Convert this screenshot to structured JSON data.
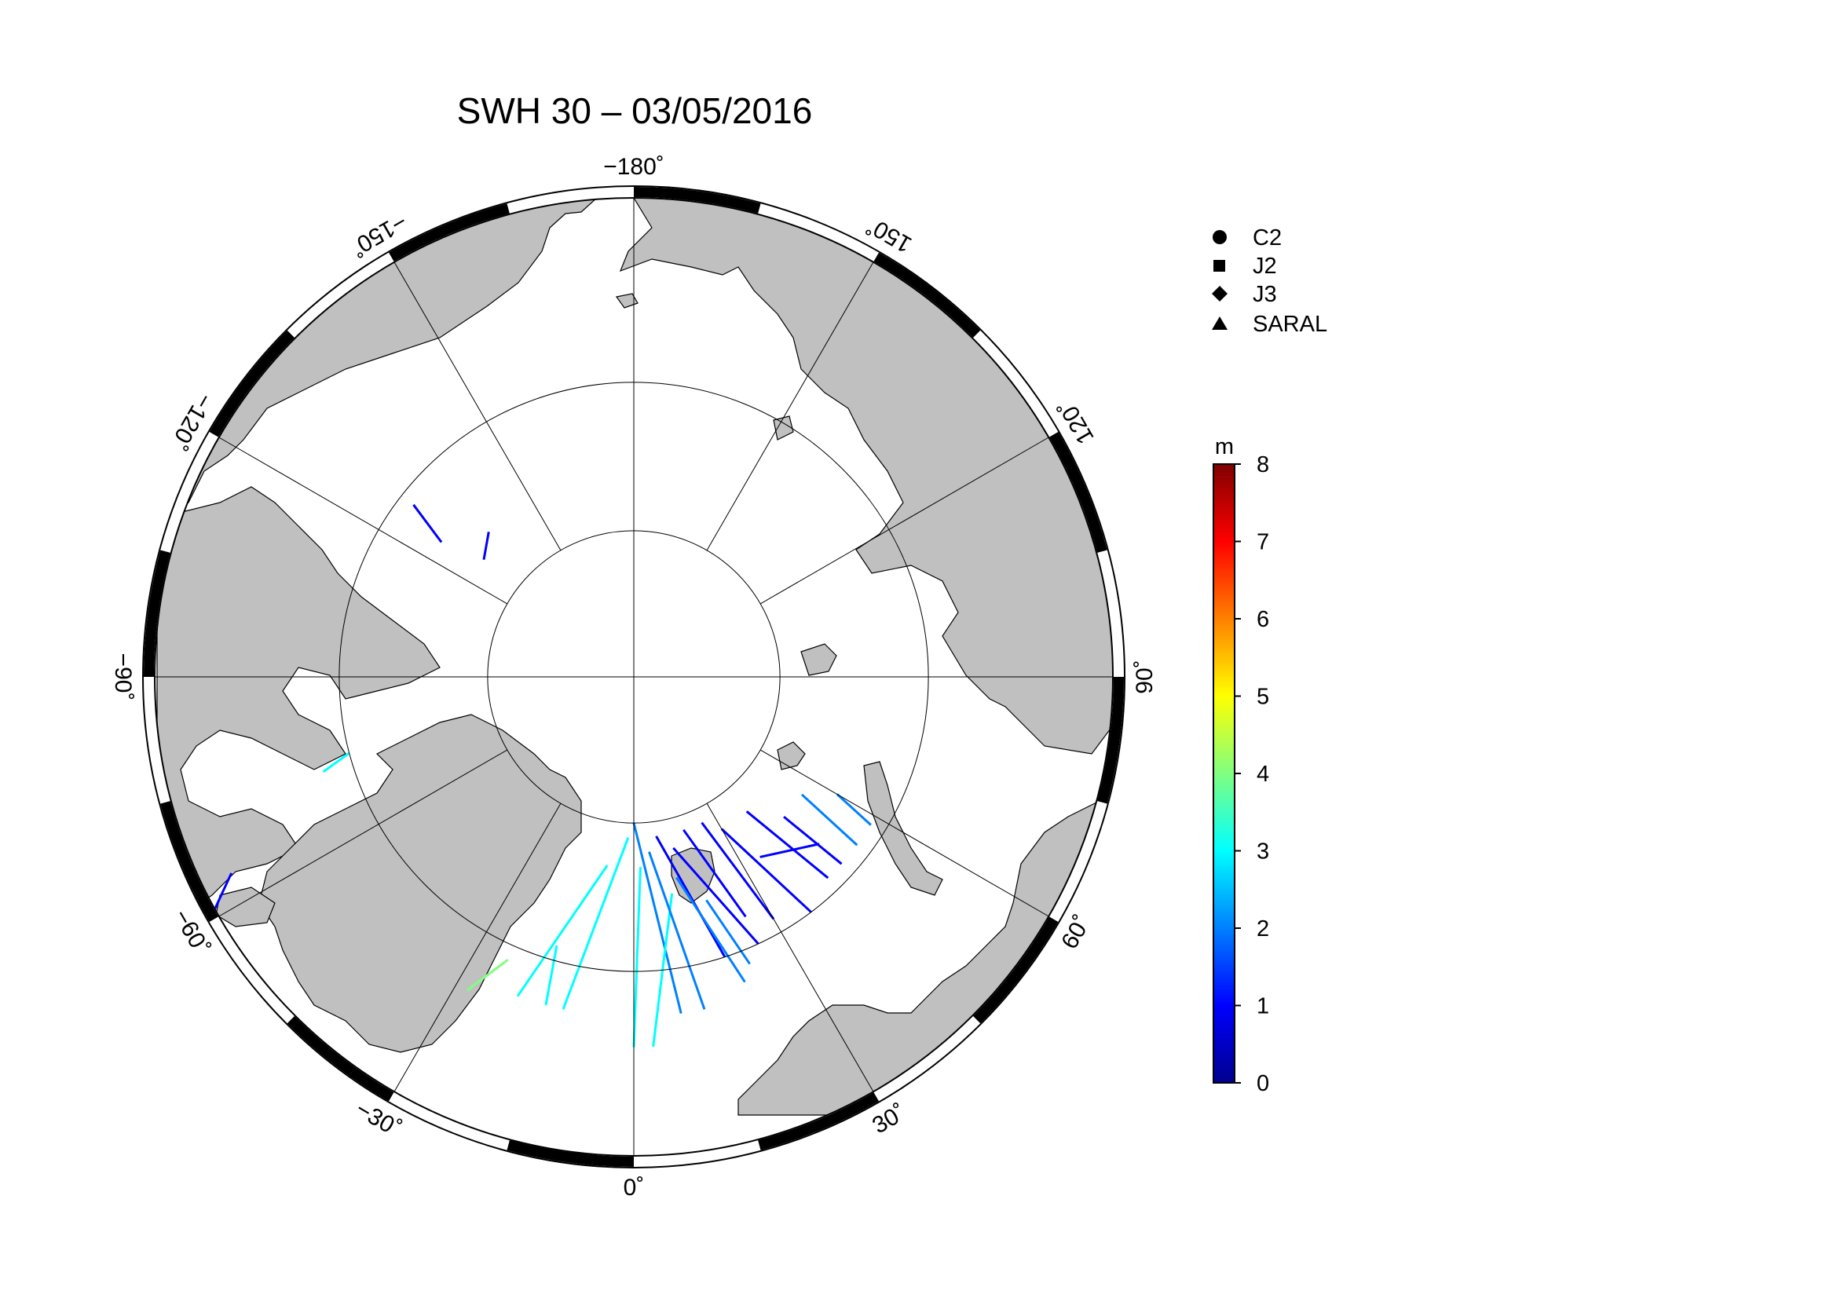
{
  "title": "SWH 30 – 03/05/2016",
  "colors": {
    "land": "#c0c0c0",
    "ocean": "#ffffff",
    "coast": "#000000",
    "graticule": "#000000",
    "frame": "#000000"
  },
  "map": {
    "projection": "polar-stereographic-north",
    "rotation_note": "0° at bottom, 90° at right",
    "meridian_labels": [
      {
        "lon": -180,
        "text": "−180˚"
      },
      {
        "lon": 150,
        "text": "150˚"
      },
      {
        "lon": 120,
        "text": "120˚"
      },
      {
        "lon": 90,
        "text": "90˚"
      },
      {
        "lon": 60,
        "text": "60˚"
      },
      {
        "lon": 30,
        "text": "30˚"
      },
      {
        "lon": 0,
        "text": "0˚"
      },
      {
        "lon": -30,
        "text": "−30˚"
      },
      {
        "lon": -60,
        "text": "−60˚"
      },
      {
        "lon": -90,
        "text": "−90˚"
      },
      {
        "lon": -120,
        "text": "−120˚"
      },
      {
        "lon": -150,
        "text": "−150˚"
      }
    ]
  },
  "legend": {
    "items": [
      {
        "symbol": "circle",
        "label": "C2"
      },
      {
        "symbol": "square",
        "label": "J2"
      },
      {
        "symbol": "diamond",
        "label": "J3"
      },
      {
        "symbol": "triangle",
        "label": "SARAL"
      }
    ]
  },
  "colorbar": {
    "unit": "m",
    "min": 0,
    "max": 8,
    "ticks": [
      "0",
      "1",
      "2",
      "3",
      "4",
      "5",
      "6",
      "7",
      "8"
    ],
    "colormap": [
      "#00008f",
      "#0000ff",
      "#0080ff",
      "#00ffff",
      "#80ff80",
      "#ffff00",
      "#ff8000",
      "#ff0000",
      "#800000"
    ]
  },
  "tracks": [
    {
      "swh": 1.3,
      "lon1": 18,
      "lat1": 79,
      "lon2": 25,
      "lat2": 72
    },
    {
      "swh": 1.2,
      "lon1": 25,
      "lat1": 79,
      "lon2": 30,
      "lat2": 71
    },
    {
      "swh": 1.0,
      "lon1": 13,
      "lat1": 78,
      "lon2": 25,
      "lat2": 70
    },
    {
      "swh": 1.4,
      "lon1": 8,
      "lat1": 79,
      "lon2": 18,
      "lat2": 70
    },
    {
      "swh": 1.1,
      "lon1": 30,
      "lat1": 78,
      "lon2": 37,
      "lat2": 70
    },
    {
      "swh": 1.2,
      "lon1": 40,
      "lat1": 78,
      "lon2": 44,
      "lat2": 71
    },
    {
      "swh": 1.3,
      "lon1": 47,
      "lat1": 76,
      "lon2": 48,
      "lat2": 71
    },
    {
      "swh": 1.5,
      "lon1": 55,
      "lat1": 76,
      "lon2": 53,
      "lat2": 71
    },
    {
      "swh": 1.2,
      "lon1": 35,
      "lat1": 75,
      "lon2": 48,
      "lat2": 73
    },
    {
      "swh": 1.6,
      "lon1": 60,
      "lat1": 74,
      "lon2": 58,
      "lat2": 71
    },
    {
      "swh": 1.8,
      "lon1": 0,
      "lat1": 80,
      "lon2": 8,
      "lat2": 67
    },
    {
      "swh": 2.6,
      "lon1": -2,
      "lat1": 79,
      "lon2": -12,
      "lat2": 67
    },
    {
      "swh": 2.8,
      "lon1": -8,
      "lat1": 77,
      "lon2": -20,
      "lat2": 67
    },
    {
      "swh": 3.0,
      "lon1": 2,
      "lat1": 77,
      "lon2": 0,
      "lat2": 65
    },
    {
      "swh": 3.3,
      "lon1": 10,
      "lat1": 75,
      "lon2": 3,
      "lat2": 65
    },
    {
      "swh": 2.5,
      "lon1": -16,
      "lat1": 71,
      "lon2": -15,
      "lat2": 67
    },
    {
      "swh": 3.9,
      "lon1": -24,
      "lat1": 69,
      "lon2": -28,
      "lat2": 66
    },
    {
      "swh": 2.2,
      "lon1": 5,
      "lat1": 78,
      "lon2": 12,
      "lat2": 67
    },
    {
      "swh": 1.6,
      "lon1": 12,
      "lat1": 76,
      "lon2": 20,
      "lat2": 68
    },
    {
      "swh": 1.5,
      "lon1": 18,
      "lat1": 74,
      "lon2": 22,
      "lat2": 69
    },
    {
      "swh": 1.2,
      "lon1": -125,
      "lat1": 74,
      "lon2": -128,
      "lat2": 71
    },
    {
      "swh": 1.4,
      "lon1": -128,
      "lat1": 77,
      "lon2": -135,
      "lat2": 76
    },
    {
      "swh": 1.3,
      "lon1": -64,
      "lat1": 60,
      "lon2": -61,
      "lat2": 58
    },
    {
      "swh": 2.9,
      "lon1": -75,
      "lat1": 70,
      "lon2": -73,
      "lat2": 68
    }
  ]
}
